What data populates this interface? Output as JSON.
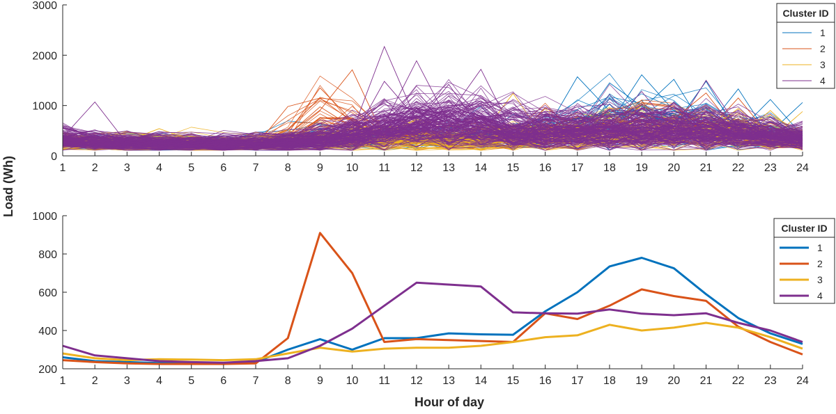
{
  "shared": {
    "ylabel": "Load (Wh)",
    "xlabel": "Hour of day"
  },
  "chart_data": [
    {
      "type": "line",
      "title": "",
      "description_series": "individual daily load profiles per cluster (hundreds of thin lines)",
      "x": [
        1,
        2,
        3,
        4,
        5,
        6,
        7,
        8,
        9,
        10,
        11,
        12,
        13,
        14,
        15,
        16,
        17,
        18,
        19,
        20,
        21,
        22,
        23,
        24
      ],
      "xlim": [
        1,
        24
      ],
      "ylim": [
        0,
        3000
      ],
      "yticks": [
        0,
        1000,
        2000,
        3000
      ],
      "legend": {
        "title": "Cluster ID",
        "entries": [
          "1",
          "2",
          "3",
          "4"
        ],
        "placement": "top-right"
      },
      "series": [
        {
          "name": "1",
          "color": "#0072BD",
          "center": [
            260,
            240,
            235,
            230,
            230,
            225,
            235,
            300,
            355,
            300,
            360,
            360,
            385,
            380,
            378,
            500,
            600,
            735,
            780,
            725,
            590,
            465,
            385,
            330
          ],
          "spread": [
            0.28,
            0.28,
            0.3,
            0.3,
            0.3,
            0.3,
            0.3,
            0.4,
            0.45,
            0.45,
            0.5,
            0.55,
            0.6,
            0.6,
            0.6,
            0.6,
            0.65,
            0.6,
            0.6,
            0.6,
            0.6,
            0.55,
            0.45,
            0.35
          ],
          "count": 36,
          "peaks": [
            [
              18,
              1450
            ],
            [
              19,
              1610
            ],
            [
              17,
              1570
            ],
            [
              20,
              1520
            ],
            [
              21,
              1480
            ],
            [
              22,
              1330
            ],
            [
              24,
              1060
            ],
            [
              23,
              1120
            ]
          ]
        },
        {
          "name": "2",
          "color": "#D95319",
          "center": [
            245,
            235,
            228,
            225,
            225,
            225,
            228,
            360,
            910,
            700,
            340,
            355,
            350,
            345,
            340,
            490,
            460,
            530,
            615,
            580,
            555,
            420,
            340,
            275
          ],
          "spread": [
            0.25,
            0.25,
            0.25,
            0.25,
            0.25,
            0.25,
            0.25,
            0.5,
            0.45,
            0.55,
            0.5,
            0.5,
            0.5,
            0.5,
            0.5,
            0.5,
            0.5,
            0.5,
            0.5,
            0.5,
            0.5,
            0.45,
            0.4,
            0.35
          ],
          "count": 22,
          "peaks": [
            [
              9,
              1350
            ],
            [
              10,
              1710
            ],
            [
              8,
              980
            ],
            [
              21,
              1250
            ],
            [
              22,
              1150
            ],
            [
              16,
              960
            ]
          ]
        },
        {
          "name": "3",
          "color": "#EDB120",
          "center": [
            280,
            255,
            245,
            250,
            248,
            245,
            250,
            280,
            310,
            290,
            305,
            310,
            310,
            320,
            340,
            365,
            375,
            430,
            400,
            415,
            440,
            415,
            365,
            305
          ],
          "spread": [
            0.35,
            0.35,
            0.35,
            0.35,
            0.35,
            0.35,
            0.35,
            0.45,
            0.5,
            0.5,
            0.55,
            0.55,
            0.55,
            0.55,
            0.6,
            0.6,
            0.6,
            0.6,
            0.6,
            0.6,
            0.6,
            0.55,
            0.5,
            0.45
          ],
          "count": 55,
          "peaks": [
            [
              4,
              540
            ],
            [
              7,
              470
            ],
            [
              15,
              1240
            ],
            [
              22,
              940
            ],
            [
              24,
              880
            ],
            [
              23,
              900
            ]
          ]
        },
        {
          "name": "4",
          "color": "#7E2F8E",
          "center": [
            320,
            270,
            255,
            240,
            235,
            232,
            240,
            255,
            320,
            410,
            530,
            650,
            640,
            630,
            495,
            490,
            488,
            510,
            488,
            480,
            490,
            440,
            400,
            340
          ],
          "spread": [
            0.35,
            0.35,
            0.35,
            0.35,
            0.35,
            0.35,
            0.35,
            0.45,
            0.5,
            0.55,
            0.55,
            0.55,
            0.55,
            0.55,
            0.55,
            0.55,
            0.55,
            0.55,
            0.55,
            0.55,
            0.55,
            0.5,
            0.45,
            0.45
          ],
          "count": 140,
          "peaks": [
            [
              2,
              1070
            ],
            [
              11,
              2170
            ],
            [
              12,
              1890
            ],
            [
              14,
              1720
            ],
            [
              13,
              1420
            ],
            [
              11,
              1480
            ],
            [
              21,
              1500
            ],
            [
              19,
              1280
            ]
          ]
        }
      ]
    },
    {
      "type": "line",
      "title": "",
      "description_series": "average load profile per cluster",
      "x": [
        1,
        2,
        3,
        4,
        5,
        6,
        7,
        8,
        9,
        10,
        11,
        12,
        13,
        14,
        15,
        16,
        17,
        18,
        19,
        20,
        21,
        22,
        23,
        24
      ],
      "xlim": [
        1,
        24
      ],
      "ylim": [
        200,
        1000
      ],
      "yticks": [
        200,
        400,
        600,
        800,
        1000
      ],
      "legend": {
        "title": "Cluster ID",
        "entries": [
          "1",
          "2",
          "3",
          "4"
        ],
        "placement": "top-right"
      },
      "series": [
        {
          "name": "1",
          "color": "#0072BD",
          "values": [
            260,
            240,
            235,
            230,
            230,
            225,
            235,
            300,
            355,
            300,
            360,
            360,
            385,
            380,
            378,
            500,
            600,
            735,
            780,
            725,
            590,
            465,
            385,
            330
          ]
        },
        {
          "name": "2",
          "color": "#D95319",
          "values": [
            245,
            235,
            228,
            225,
            225,
            225,
            228,
            360,
            910,
            700,
            340,
            355,
            350,
            345,
            340,
            490,
            460,
            530,
            615,
            580,
            555,
            420,
            340,
            275
          ]
        },
        {
          "name": "3",
          "color": "#EDB120",
          "values": [
            280,
            255,
            245,
            250,
            248,
            245,
            250,
            280,
            310,
            290,
            305,
            310,
            310,
            320,
            340,
            365,
            375,
            430,
            400,
            415,
            440,
            415,
            365,
            305
          ]
        },
        {
          "name": "4",
          "color": "#7E2F8E",
          "values": [
            320,
            270,
            255,
            240,
            235,
            232,
            240,
            255,
            320,
            410,
            530,
            650,
            640,
            630,
            495,
            490,
            488,
            510,
            488,
            480,
            490,
            440,
            400,
            340
          ]
        }
      ]
    }
  ]
}
